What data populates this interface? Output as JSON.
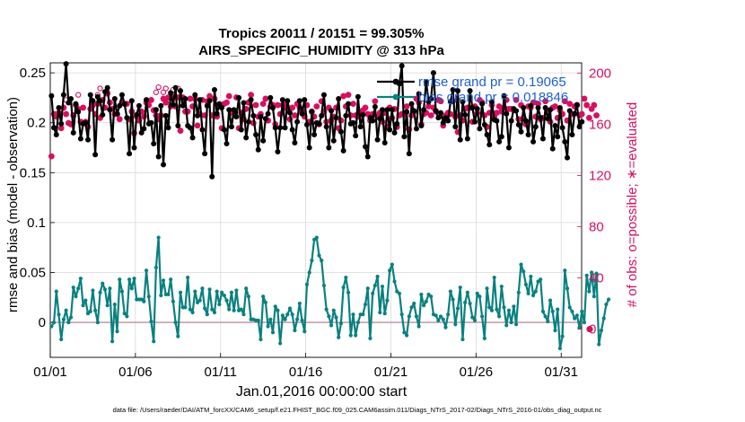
{
  "chart_data": {
    "type": "line",
    "title_line1": "Tropics 20011 / 20151 = 99.305%",
    "title_line2": "AIRS_SPECIFIC_HUMIDITY @ 313 hPa",
    "xlabel": "Jan.01,2016 00:00:00 start",
    "ylabel_left": "rmse and bias (model - observation)",
    "ylabel_right": "# of obs: o=possible; ∗=evaluated",
    "footer": "data file: /Users/raeder/DAI/ATM_forcXX/CAM6_setup/f.e21.FHIST_BGC.f09_025.CAM6assim.011/Diags_NTrS_2017-02/Diags_NTrS_2016-01/obs_diag_output.nc",
    "x_ticks": [
      {
        "day": 1,
        "label": "01/01"
      },
      {
        "day": 6,
        "label": "01/06"
      },
      {
        "day": 11,
        "label": "01/11"
      },
      {
        "day": 16,
        "label": "01/16"
      },
      {
        "day": 21,
        "label": "01/21"
      },
      {
        "day": 26,
        "label": "01/26"
      },
      {
        "day": 31,
        "label": "01/31"
      }
    ],
    "xlim": [
      1,
      32.2
    ],
    "ylim_left": [
      -0.035,
      0.26
    ],
    "y_ticks_left": [
      {
        "v": 0,
        "label": "0"
      },
      {
        "v": 0.05,
        "label": "0.05"
      },
      {
        "v": 0.1,
        "label": "0.1"
      },
      {
        "v": 0.15,
        "label": "0.15"
      },
      {
        "v": 0.2,
        "label": "0.2"
      },
      {
        "v": 0.25,
        "label": "0.25"
      }
    ],
    "ylim_right": [
      -22,
      208
    ],
    "y_ticks_right": [
      {
        "v": 0,
        "label": "0"
      },
      {
        "v": 40,
        "label": "40"
      },
      {
        "v": 80,
        "label": "80"
      },
      {
        "v": 120,
        "label": "120"
      },
      {
        "v": 160,
        "label": "160"
      },
      {
        "v": 200,
        "label": "200"
      }
    ],
    "zero_line": 0,
    "legend": [
      {
        "label": "rmse grand pr = 0.19065",
        "color": "#000000"
      },
      {
        "label": "bias grand pr = 0.018846",
        "color": "#0a8080"
      }
    ],
    "colors": {
      "rmse": "#000000",
      "bias": "#0a8080",
      "obs": "#d6105f",
      "grid": "#d9d9d9",
      "zero": "#c8a0a8"
    },
    "series": [
      {
        "name": "rmse",
        "axis": "left",
        "values": [
          0.227,
          0.195,
          0.188,
          0.215,
          0.199,
          0.228,
          0.259,
          0.22,
          0.224,
          0.19,
          0.219,
          0.211,
          0.184,
          0.199,
          0.2,
          0.183,
          0.228,
          0.222,
          0.168,
          0.226,
          0.222,
          0.208,
          0.231,
          0.235,
          0.213,
          0.183,
          0.224,
          0.209,
          0.217,
          0.228,
          0.219,
          0.205,
          0.169,
          0.222,
          0.175,
          0.208,
          0.217,
          0.19,
          0.194,
          0.223,
          0.199,
          0.2,
          0.179,
          0.213,
          0.166,
          0.217,
          0.158,
          0.207,
          0.195,
          0.23,
          0.218,
          0.235,
          0.197,
          0.232,
          0.217,
          0.224,
          0.197,
          0.195,
          0.185,
          0.228,
          0.207,
          0.223,
          0.193,
          0.169,
          0.217,
          0.222,
          0.146,
          0.233,
          0.209,
          0.219,
          0.215,
          0.193,
          0.179,
          0.213,
          0.196,
          0.213,
          0.206,
          0.225,
          0.193,
          0.22,
          0.185,
          0.201,
          0.223,
          0.207,
          0.188,
          0.173,
          0.206,
          0.182,
          0.204,
          0.209,
          0.225,
          0.215,
          0.195,
          0.171,
          0.195,
          0.223,
          0.195,
          0.222,
          0.21,
          0.193,
          0.18,
          0.201,
          0.222,
          0.209,
          0.223,
          0.198,
          0.175,
          0.211,
          0.188,
          0.2,
          0.199,
          0.207,
          0.228,
          0.196,
          0.175,
          0.212,
          0.182,
          0.205,
          0.224,
          0.191,
          0.172,
          0.207,
          0.219,
          0.199,
          0.2,
          0.187,
          0.226,
          0.196,
          0.208,
          0.176,
          0.166,
          0.205,
          0.202,
          0.216,
          0.183,
          0.204,
          0.213,
          0.18,
          0.213,
          0.193,
          0.213,
          0.19,
          0.199,
          0.239,
          0.257,
          0.186,
          0.211,
          0.169,
          0.219,
          0.212,
          0.194,
          0.229,
          0.197,
          0.213,
          0.241,
          0.221,
          0.224,
          0.25,
          0.212,
          0.205,
          0.21,
          0.2,
          0.205,
          0.202,
          0.221,
          0.233,
          0.196,
          0.232,
          0.183,
          0.221,
          0.208,
          0.184,
          0.232,
          0.215,
          0.201,
          0.214,
          0.194,
          0.219,
          0.198,
          0.188,
          0.178,
          0.221,
          0.203,
          0.202,
          0.181,
          0.186,
          0.227,
          0.209,
          0.175,
          0.202,
          0.214,
          0.212,
          0.198,
          0.191,
          0.215,
          0.202,
          0.188,
          0.217,
          0.181,
          0.196,
          0.215,
          0.205,
          0.184,
          0.215,
          0.204,
          0.213,
          0.174,
          0.197,
          0.186,
          0.215,
          0.195,
          0.181,
          0.165,
          0.212,
          0.188,
          0.209,
          0.218,
          0.196,
          0.201
        ]
      },
      {
        "name": "bias",
        "axis": "left",
        "values": [
          -0.004,
          0.0,
          0.031,
          0.008,
          -0.017,
          0.003,
          0.012,
          0.0,
          0.005,
          0.035,
          0.026,
          0.034,
          0.044,
          0.017,
          0.022,
          0.009,
          0.011,
          0.032,
          0.012,
          0.0,
          0.03,
          0.039,
          0.033,
          0.017,
          0.034,
          -0.019,
          0.018,
          -0.009,
          0.043,
          0.031,
          0.009,
          0.006,
          0.043,
          0.034,
          0.044,
          0.023,
          0.023,
          0.023,
          0.021,
          0.052,
          0.026,
          0.001,
          -0.019,
          0.055,
          0.085,
          0.027,
          0.042,
          0.028,
          0.028,
          0.043,
          0.021,
          0.0,
          -0.014,
          0.03,
          0.015,
          0.015,
          0.045,
          0.013,
          0.01,
          0.031,
          0.02,
          0.022,
          0.034,
          0.014,
          0.008,
          0.033,
          0.013,
          0.01,
          0.031,
          0.018,
          0.03,
          0.027,
          0.022,
          0.013,
          0.03,
          0.012,
          0.032,
          0.012,
          0.013,
          0.008,
          0.034,
          0.026,
          0.003,
          0.003,
          0.002,
          0.002,
          -0.017,
          0.026,
          0.02,
          -0.004,
          0.003,
          -0.01,
          0.016,
          0.012,
          -0.021,
          0.007,
          0.003,
          0.008,
          0.014,
          0.008,
          -0.008,
          0.003,
          0.019,
          0.002,
          -0.009,
          0.038,
          0.05,
          0.062,
          0.083,
          0.085,
          0.067,
          0.062,
          0.037,
          0.013,
          0.006,
          -0.003,
          0.012,
          0.005,
          -0.015,
          -0.001,
          0.035,
          0.045,
          0.03,
          -0.013,
          0.008,
          -0.013,
          0.0,
          0.008,
          0.008,
          0.018,
          0.034,
          -0.016,
          0.029,
          0.037,
          0.046,
          0.01,
          0.036,
          0.009,
          0.022,
          0.052,
          0.058,
          0.041,
          0.031,
          0.029,
          0.008,
          -0.01,
          -0.013,
          0.006,
          0.015,
          0.019,
          0.006,
          -0.004,
          0.028,
          0.017,
          0.021,
          0.028,
          0.026,
          0.008,
          0.007,
          0.002,
          0.006,
          0.003,
          -0.005,
          0.008,
          0.031,
          0.023,
          -0.002,
          0.014,
          0.035,
          -0.017,
          0.02,
          0.03,
          0.019,
          0.005,
          0.002,
          0.029,
          0.026,
          0.006,
          -0.016,
          0.034,
          0.015,
          0.012,
          0.045,
          0.013,
          0.006,
          0.036,
          0.015,
          -0.003,
          0.012,
          0.0,
          0.016,
          -0.002,
          0.03,
          0.058,
          0.051,
          0.038,
          0.029,
          0.046,
          0.027,
          0.031,
          0.041,
          0.043,
          0.011,
          0.006,
          0.001,
          0.022,
          0.011,
          -0.008,
          0.013,
          -0.026,
          -0.014,
          0.052,
          0.034,
          0.015,
          0.011,
          0.004,
          0.007,
          -0.005,
          0.011,
          0.0,
          0.047,
          0.031,
          0.05,
          0.026,
          0.049,
          -0.022,
          -0.008,
          0.004,
          0.018,
          0.023
        ]
      },
      {
        "name": "obs_possible",
        "axis": "right",
        "values": [
          135,
          168,
          166,
          169,
          157,
          173,
          179,
          161,
          160,
          167,
          175,
          183,
          162,
          173,
          162,
          158,
          172,
          175,
          168,
          183,
          188,
          179,
          173,
          185,
          177,
          172,
          168,
          168,
          164,
          177,
          176,
          176,
          164,
          170,
          153,
          166,
          163,
          170,
          166,
          177,
          175,
          179,
          171,
          185,
          189,
          167,
          185,
          188,
          181,
          174,
          187,
          174,
          188,
          155,
          181,
          170,
          170,
          180,
          174,
          180,
          159,
          168,
          179,
          167,
          178,
          182,
          167,
          180,
          166,
          174,
          157,
          176,
          177,
          182,
          169,
          170,
          181,
          157,
          169,
          164,
          172,
          177,
          183,
          161,
          175,
          166,
          168,
          176,
          180,
          163,
          174,
          175,
          160,
          175,
          168,
          175,
          175,
          172,
          164,
          173,
          167,
          176,
          173,
          170,
          166,
          175,
          162,
          170,
          166,
          174,
          160,
          178,
          170,
          162,
          173,
          163,
          166,
          173,
          157,
          163,
          182,
          174,
          183,
          167,
          176,
          167,
          166,
          169,
          171,
          173,
          168,
          163,
          168,
          178,
          166,
          169,
          162,
          169,
          158,
          173,
          165,
          172,
          158,
          167,
          168,
          168,
          174,
          156,
          167,
          170,
          180,
          177,
          160,
          168,
          169,
          174,
          167,
          173,
          170,
          179,
          178,
          159,
          167,
          169,
          168,
          178,
          166,
          154,
          167,
          163,
          172,
          173,
          173,
          162,
          174,
          169,
          179,
          177,
          167,
          158,
          169,
          175,
          166,
          169,
          174,
          170,
          173,
          179,
          172,
          172,
          171,
          179,
          164,
          175,
          165,
          160,
          174,
          173,
          177,
          166,
          176,
          164,
          165,
          178,
          169,
          162,
          173,
          174,
          165,
          171,
          168,
          178,
          163,
          176,
          168,
          174,
          175,
          167,
          168,
          180,
          175,
          165,
          172,
          175,
          167
        ]
      },
      {
        "name": "obs_evaluated",
        "axis": "right",
        "values": [
          135,
          168,
          166,
          169,
          157,
          173,
          168,
          161,
          160,
          167,
          175,
          172,
          162,
          173,
          162,
          158,
          172,
          175,
          168,
          176,
          165,
          179,
          173,
          184,
          177,
          172,
          168,
          168,
          164,
          177,
          176,
          176,
          164,
          170,
          153,
          166,
          163,
          170,
          166,
          177,
          175,
          179,
          171,
          167,
          164,
          167,
          180,
          177,
          181,
          174,
          181,
          174,
          181,
          155,
          181,
          170,
          170,
          180,
          174,
          180,
          159,
          168,
          179,
          167,
          178,
          182,
          167,
          180,
          166,
          174,
          157,
          176,
          177,
          182,
          169,
          170,
          181,
          157,
          169,
          164,
          172,
          177,
          183,
          161,
          175,
          166,
          168,
          176,
          180,
          163,
          174,
          175,
          160,
          175,
          168,
          175,
          175,
          172,
          164,
          173,
          167,
          176,
          173,
          170,
          166,
          175,
          162,
          170,
          166,
          174,
          160,
          178,
          170,
          162,
          173,
          163,
          166,
          173,
          157,
          163,
          182,
          174,
          183,
          167,
          176,
          167,
          166,
          169,
          171,
          173,
          168,
          163,
          168,
          178,
          166,
          169,
          162,
          169,
          158,
          173,
          165,
          172,
          158,
          167,
          168,
          168,
          174,
          156,
          167,
          170,
          180,
          177,
          160,
          168,
          169,
          174,
          167,
          173,
          170,
          179,
          178,
          159,
          167,
          169,
          168,
          178,
          166,
          154,
          167,
          163,
          172,
          173,
          173,
          162,
          174,
          169,
          179,
          177,
          167,
          158,
          169,
          175,
          166,
          169,
          174,
          170,
          173,
          179,
          172,
          172,
          171,
          179,
          164,
          175,
          165,
          160,
          174,
          173,
          177,
          166,
          176,
          164,
          165,
          178,
          169,
          162,
          173,
          174,
          165,
          171,
          168,
          178,
          163,
          176,
          168,
          174,
          175,
          167,
          168,
          180,
          175,
          165,
          172,
          175,
          167
        ]
      }
    ],
    "samples_per_day": 7,
    "right_end_obs": 0
  }
}
